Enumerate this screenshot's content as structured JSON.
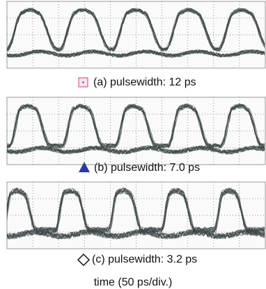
{
  "panels": [
    {
      "caption": "(a) pulsewidth: 12 ps"
    },
    {
      "caption": "(b) pulsewidth: 7.0 ps"
    },
    {
      "caption": "(c) pulsewidth: 3.2 ps"
    }
  ],
  "footer": "time (50 ps/div.)"
}
